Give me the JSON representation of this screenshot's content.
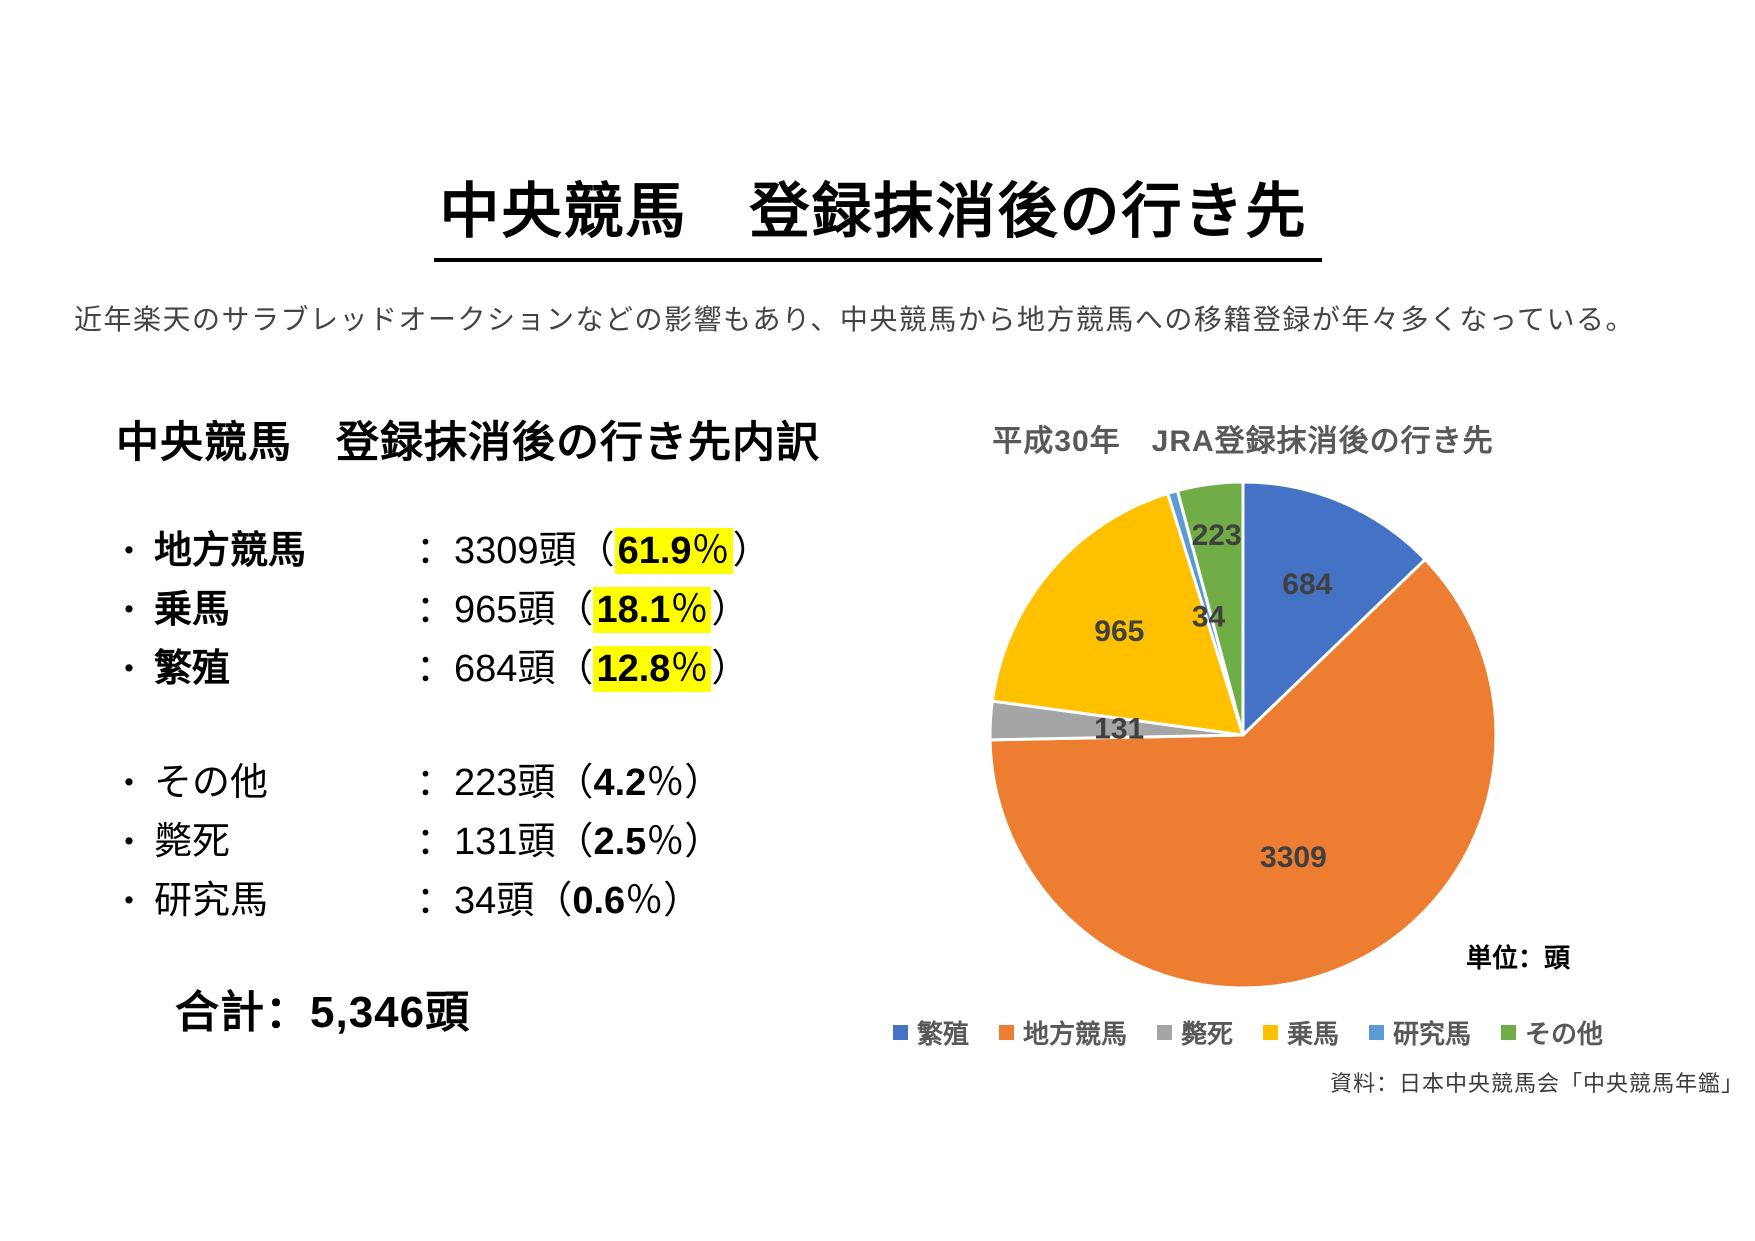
{
  "page": {
    "title": "中央競馬　登録抹消後の行き先",
    "subtitle": "近年楽天のサラブレッドオークションなどの影響もあり、中央競馬から地方競馬への移籍登録が年々多くなっている。",
    "source_note": "資料：日本中央競馬会「中央競馬年鑑」"
  },
  "breakdown": {
    "heading": "中央競馬　登録抹消後の行き先内訳",
    "highlight_color": "#FFFF00",
    "punctuation": {
      "bullet": "・",
      "colon": "：",
      "paren_open": "（",
      "paren_close": "）",
      "percent_sign": "％",
      "unit": "頭"
    },
    "primary_items": [
      {
        "label": "地方競馬",
        "count": "3309",
        "percent": "61.9",
        "emphasis": true
      },
      {
        "label": "乗馬",
        "count": "965",
        "percent": "18.1",
        "emphasis": true
      },
      {
        "label": "繁殖",
        "count": "684",
        "percent": "12.8",
        "emphasis": true
      }
    ],
    "secondary_items": [
      {
        "label": "その他",
        "count": "223",
        "percent": "4.2",
        "emphasis": false
      },
      {
        "label": "斃死",
        "count": "131",
        "percent": "2.5",
        "emphasis": false
      },
      {
        "label": "研究馬",
        "count": "34",
        "percent": "0.6",
        "emphasis": false
      }
    ],
    "total_label": "合計：5,346頭"
  },
  "chart": {
    "unit_label": "単位：頭"
  },
  "chart_data": {
    "type": "pie",
    "title": "平成30年　JRA登録抹消後の行き先",
    "unit": "頭",
    "categories": [
      "繁殖",
      "地方競馬",
      "斃死",
      "乗馬",
      "研究馬",
      "その他"
    ],
    "values": [
      684,
      3309,
      131,
      965,
      34,
      223
    ],
    "percentages": [
      12.8,
      61.9,
      2.5,
      18.1,
      0.6,
      4.2
    ],
    "colors": [
      "#4472C4",
      "#ED7D31",
      "#A5A5A5",
      "#FFC000",
      "#5B9BD5",
      "#70AD47"
    ],
    "label_color": "#404040",
    "slice_border_color": "#FFFFFF",
    "total": 5346,
    "start_angle_deg": 0,
    "direction": "clockwise",
    "legend_position": "bottom"
  }
}
